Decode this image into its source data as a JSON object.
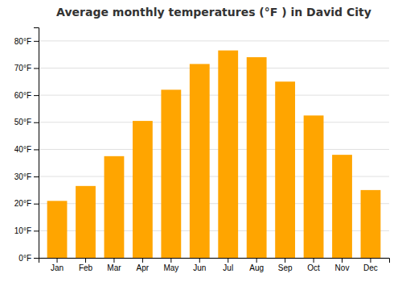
{
  "chart_data": {
    "type": "bar",
    "title": "Average monthly temperatures (°F ) in David City",
    "categories": [
      "Jan",
      "Feb",
      "Mar",
      "Apr",
      "May",
      "Jun",
      "Jul",
      "Aug",
      "Sep",
      "Oct",
      "Nov",
      "Dec"
    ],
    "values": [
      21,
      26.5,
      37.5,
      50.5,
      62,
      71.5,
      76.5,
      74,
      65,
      52.5,
      38,
      25
    ],
    "color": "#FFA500",
    "ylim": [
      0,
      85
    ],
    "yticks": [
      {
        "value": 0,
        "label": "0°F"
      },
      {
        "value": 10,
        "label": "10°F"
      },
      {
        "value": 20,
        "label": "20°F"
      },
      {
        "value": 30,
        "label": "30°F"
      },
      {
        "value": 40,
        "label": "40°F"
      },
      {
        "value": 50,
        "label": "50°F"
      },
      {
        "value": 60,
        "label": "60°F"
      },
      {
        "value": 70,
        "label": "70°F"
      },
      {
        "value": 80,
        "label": "80°F"
      }
    ],
    "grid": true
  }
}
